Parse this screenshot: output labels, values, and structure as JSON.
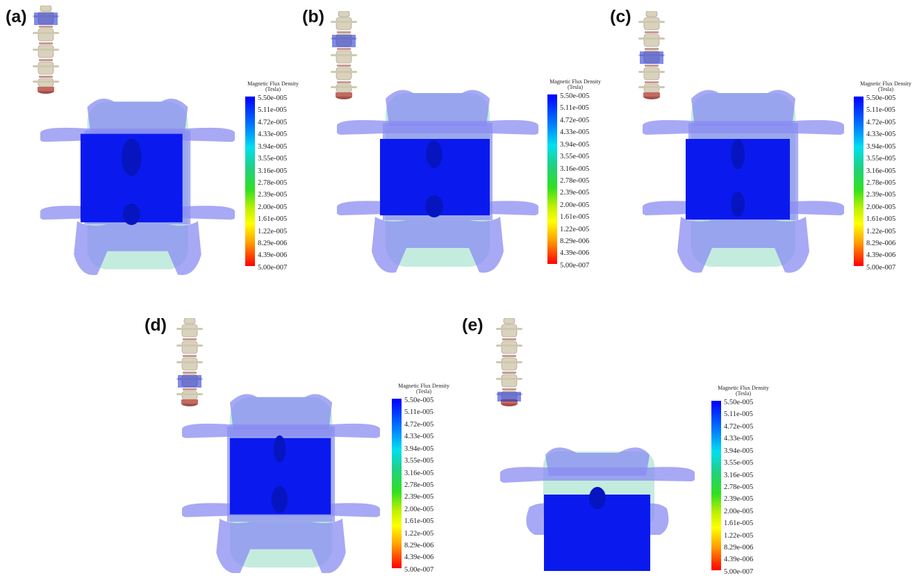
{
  "panels": [
    {
      "label": "(a)"
    },
    {
      "label": "(b)"
    },
    {
      "label": "(c)"
    },
    {
      "label": "(d)"
    },
    {
      "label": "(e)"
    }
  ],
  "legend": {
    "title_line1": "Magnetic Flux Density",
    "title_line2": "(Tesla)",
    "ticks": [
      "5.50e-005",
      "5.11e-005",
      "4.72e-005",
      "4.33e-005",
      "3.94e-005",
      "3.55e-005",
      "3.16e-005",
      "2.78e-005",
      "2.39e-005",
      "2.00e-005",
      "1.61e-005",
      "1.22e-005",
      "8.29e-006",
      "4.39e-006",
      "5.00e-007"
    ],
    "colors": [
      "#0000ff",
      "#0070ff",
      "#00c0ff",
      "#00ffd0",
      "#20e060",
      "#80e020",
      "#ffff00",
      "#ffb000",
      "#ff4000",
      "#ff0000"
    ]
  },
  "colors": {
    "bone_translucent": "#8a8cf2",
    "magnet_block": "#0a1aef",
    "disc_edge": "#9ee2c8",
    "spine_bone": "#d9d2bd"
  }
}
